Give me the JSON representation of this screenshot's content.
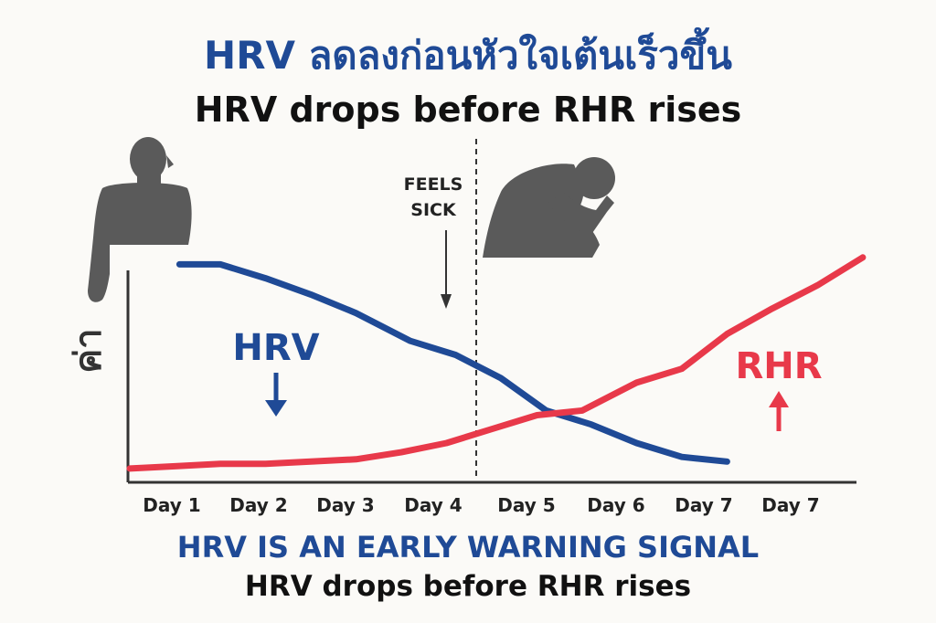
{
  "title_th": "HRV ลดลงก่อนหัวใจเต้นเร็วขึ้น",
  "title_en": "HRV drops before RHR rises",
  "footer": {
    "headline": "HRV IS AN EARLY WARNING SIGNAL",
    "subline": "HRV drops before RHR rises"
  },
  "colors": {
    "hrv": "#1f4a96",
    "rhr": "#e8394a",
    "figure": "#5a5a5a",
    "axis": "#333333"
  },
  "chart_data": {
    "type": "line",
    "x_tick_labels": [
      "Day 1",
      "Day 2",
      "Day 3",
      "Day 4",
      "Day 5",
      "Day 6",
      "Day 7",
      "Day 7"
    ],
    "ylabel": "ค่า",
    "y_ticks": false,
    "grid": false,
    "series": [
      {
        "name": "HRV",
        "direction_arrow": "down",
        "x": [
          0.55,
          1.0,
          1.5,
          2.0,
          2.5,
          3.1,
          3.6,
          4.1,
          4.6,
          5.1,
          5.6,
          6.1,
          6.6
        ],
        "y": [
          0.9,
          0.9,
          0.84,
          0.77,
          0.69,
          0.57,
          0.51,
          0.41,
          0.27,
          0.21,
          0.13,
          0.07,
          0.05
        ]
      },
      {
        "name": "RHR",
        "direction_arrow": "up",
        "x": [
          0.0,
          0.5,
          1.0,
          1.5,
          2.0,
          2.5,
          3.0,
          3.5,
          4.0,
          4.5,
          5.0,
          5.6,
          6.1,
          6.6,
          7.1,
          7.6,
          8.1
        ],
        "y": [
          0.02,
          0.03,
          0.04,
          0.04,
          0.05,
          0.06,
          0.09,
          0.13,
          0.19,
          0.25,
          0.27,
          0.39,
          0.45,
          0.6,
          0.71,
          0.81,
          0.93
        ]
      }
    ],
    "annotations": [
      {
        "text_lines": [
          "FEELS",
          "SICK"
        ],
        "x": 3.55,
        "y": 0.62,
        "arrow": "down",
        "marker_line_x": 3.85,
        "marker_line": "dashed vertical"
      }
    ],
    "figures": [
      "healthy-person-silhouette",
      "sick-person-silhouette"
    ]
  }
}
